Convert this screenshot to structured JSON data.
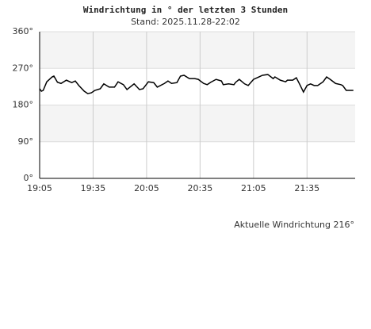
{
  "chart_data": {
    "type": "line",
    "title": "Windrichtung in ° der letzten 3 Stunden",
    "subtitle": "Stand: 2025.11.28-22:02",
    "annotation": "Aktuelle Windrichtung 216°",
    "x": [
      "19:05",
      "19:06",
      "19:07",
      "19:09",
      "19:12",
      "19:13",
      "19:15",
      "19:17",
      "19:20",
      "19:23",
      "19:25",
      "19:27",
      "19:30",
      "19:32",
      "19:34",
      "19:36",
      "19:39",
      "19:41",
      "19:44",
      "19:47",
      "19:49",
      "19:52",
      "19:54",
      "19:58",
      "20:01",
      "20:03",
      "20:06",
      "20:09",
      "20:11",
      "20:15",
      "20:17",
      "20:19",
      "20:22",
      "20:24",
      "20:26",
      "20:29",
      "20:32",
      "20:34",
      "20:37",
      "20:39",
      "20:41",
      "20:44",
      "20:47",
      "20:48",
      "20:51",
      "20:54",
      "20:55",
      "20:57",
      "21:00",
      "21:02",
      "21:05",
      "21:08",
      "21:10",
      "21:13",
      "21:16",
      "21:17",
      "21:20",
      "21:23",
      "21:24",
      "21:27",
      "21:29",
      "21:31",
      "21:33",
      "21:35",
      "21:37",
      "21:39",
      "21:41",
      "21:44",
      "21:46",
      "21:48",
      "21:51",
      "21:54",
      "21:55",
      "21:57",
      "22:01"
    ],
    "series": [
      {
        "name": "Windrichtung",
        "color": "#000000",
        "values": [
          220,
          214,
          216,
          237,
          249,
          251,
          236,
          233,
          241,
          235,
          239,
          228,
          214,
          208,
          210,
          216,
          220,
          232,
          224,
          224,
          237,
          230,
          218,
          232,
          218,
          220,
          237,
          235,
          224,
          233,
          239,
          233,
          235,
          251,
          253,
          245,
          245,
          243,
          233,
          230,
          236,
          243,
          239,
          230,
          232,
          230,
          236,
          243,
          232,
          228,
          243,
          249,
          253,
          255,
          245,
          249,
          241,
          237,
          241,
          241,
          247,
          230,
          212,
          228,
          232,
          228,
          228,
          237,
          249,
          243,
          233,
          230,
          228,
          216,
          216
        ]
      }
    ],
    "xlim": [
      "19:05",
      "22:02"
    ],
    "xticks": [
      "19:05",
      "19:35",
      "20:05",
      "20:35",
      "21:05",
      "21:35"
    ],
    "ylim": [
      0,
      360
    ],
    "yticks": [
      {
        "value": 0,
        "label": "0°"
      },
      {
        "value": 90,
        "label": "90°"
      },
      {
        "value": 180,
        "label": "180°"
      },
      {
        "value": 270,
        "label": "270°"
      },
      {
        "value": 360,
        "label": "360°"
      }
    ],
    "grid": true
  }
}
